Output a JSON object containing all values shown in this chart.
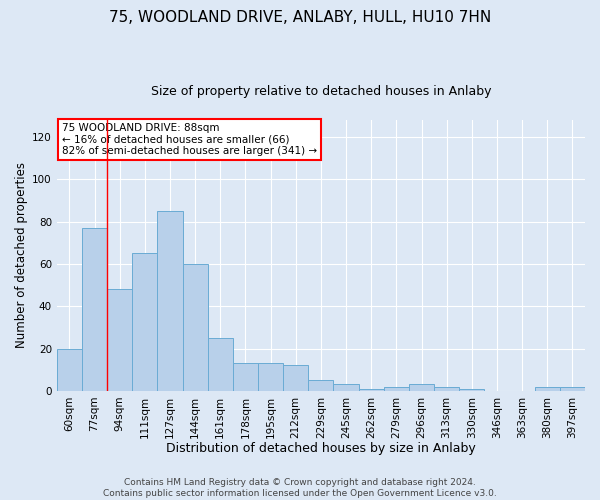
{
  "title1": "75, WOODLAND DRIVE, ANLABY, HULL, HU10 7HN",
  "title2": "Size of property relative to detached houses in Anlaby",
  "xlabel": "Distribution of detached houses by size in Anlaby",
  "ylabel": "Number of detached properties",
  "categories": [
    "60sqm",
    "77sqm",
    "94sqm",
    "111sqm",
    "127sqm",
    "144sqm",
    "161sqm",
    "178sqm",
    "195sqm",
    "212sqm",
    "229sqm",
    "245sqm",
    "262sqm",
    "279sqm",
    "296sqm",
    "313sqm",
    "330sqm",
    "346sqm",
    "363sqm",
    "380sqm",
    "397sqm"
  ],
  "values": [
    20,
    77,
    48,
    65,
    85,
    60,
    25,
    13,
    13,
    12,
    5,
    3,
    1,
    2,
    3,
    2,
    1,
    0,
    0,
    2,
    2
  ],
  "bar_color": "#b8d0ea",
  "bar_edge_color": "#6aabd4",
  "background_color": "#dde8f5",
  "grid_color": "#ffffff",
  "red_line_x": 1.5,
  "annotation_text": "75 WOODLAND DRIVE: 88sqm\n← 16% of detached houses are smaller (66)\n82% of semi-detached houses are larger (341) →",
  "ylim": [
    0,
    128
  ],
  "yticks": [
    0,
    20,
    40,
    60,
    80,
    100,
    120
  ],
  "footer": "Contains HM Land Registry data © Crown copyright and database right 2024.\nContains public sector information licensed under the Open Government Licence v3.0.",
  "title1_fontsize": 11,
  "title2_fontsize": 9,
  "xlabel_fontsize": 9,
  "ylabel_fontsize": 8.5,
  "tick_fontsize": 7.5,
  "footer_fontsize": 6.5,
  "annot_fontsize": 7.5
}
